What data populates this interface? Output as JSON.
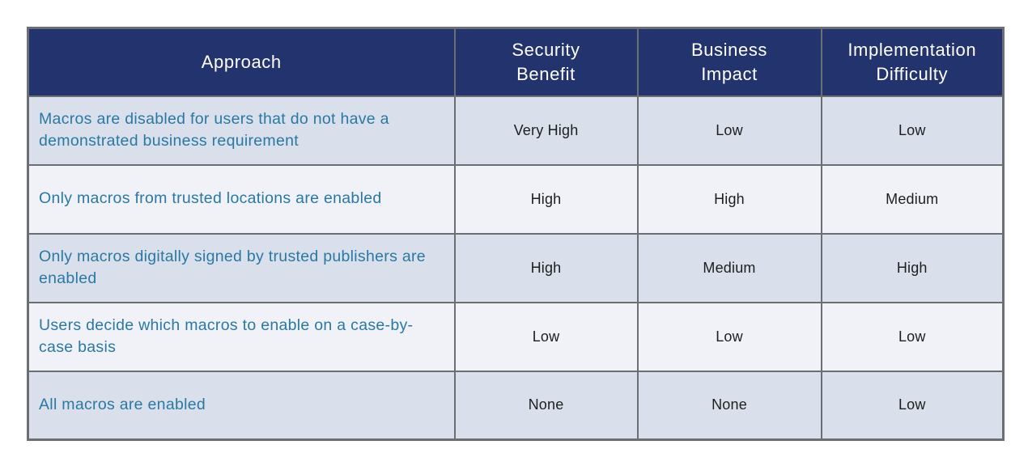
{
  "table": {
    "columns": [
      {
        "label": "Approach"
      },
      {
        "label": "Security\nBenefit"
      },
      {
        "label": "Business\nImpact"
      },
      {
        "label": "Implementation\nDifficulty"
      }
    ],
    "rows": [
      {
        "approach": "Macros are disabled for users that do not have a demonstrated business requirement",
        "security_benefit": "Very High",
        "business_impact": "Low",
        "implementation_difficulty": "Low"
      },
      {
        "approach": "Only macros from trusted locations are enabled",
        "security_benefit": "High",
        "business_impact": "High",
        "implementation_difficulty": "Medium"
      },
      {
        "approach": "Only macros digitally signed by trusted publishers are enabled",
        "security_benefit": "High",
        "business_impact": "Medium",
        "implementation_difficulty": "High"
      },
      {
        "approach": "Users decide which macros to enable on a case-by-case basis",
        "security_benefit": "Low",
        "business_impact": "Low",
        "implementation_difficulty": "Low"
      },
      {
        "approach": "All macros are enabled",
        "security_benefit": "None",
        "business_impact": "None",
        "implementation_difficulty": "Low"
      }
    ],
    "colors": {
      "header_bg": "#23336d",
      "header_text": "#ffffff",
      "row_odd_bg": "#d9e0ec",
      "row_even_bg": "#f0f2f7",
      "border": "#6b6f74",
      "approach_text": "#2a78a3",
      "value_text": "#1e1e1e"
    }
  }
}
